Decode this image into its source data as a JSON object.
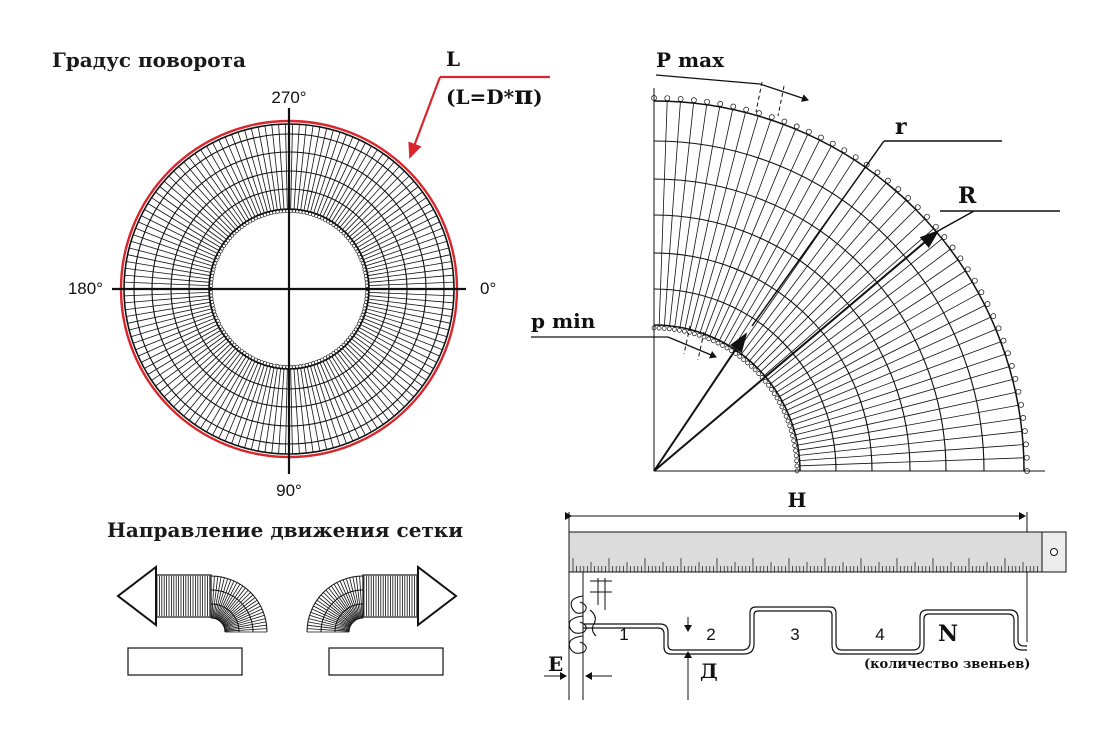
{
  "turn_panel": {
    "title": "Градус поворота",
    "angle_top": "270°",
    "angle_left": "180°",
    "angle_right": "0°",
    "angle_bottom": "90°",
    "length_label": "L",
    "length_formula": "(L=D*",
    "pi_symbol": "π",
    "formula_close": ")",
    "circumference_color": "#d9262c"
  },
  "quarter_panel": {
    "p_max_label": "P max",
    "r_label": "r",
    "R_label": "R",
    "p_min_label": "p min"
  },
  "direction_panel": {
    "title": "Направление движения сетки"
  },
  "measure_panel": {
    "H_label": "H",
    "E_label": "E",
    "D_label": "Д",
    "N_label": "N",
    "N_caption": "(количество звеньев)",
    "link_numbers": [
      "1",
      "2",
      "3",
      "4"
    ]
  }
}
